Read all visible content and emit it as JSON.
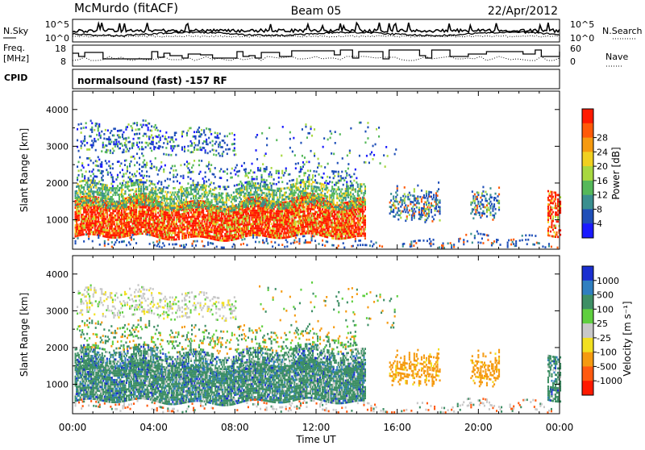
{
  "header": {
    "station": "McMurdo (fitACF)",
    "beam": "Beam 05",
    "date": "22/Apr/2012"
  },
  "summary_panel": {
    "nsky_label": "N.Sky",
    "nsky_ticks": [
      "10^5",
      "10^0"
    ],
    "nsearch_label": "N.Search",
    "nsearch_ticks": [
      "10^5",
      "10^0"
    ],
    "freq_label_line1": "Freq.",
    "freq_label_line2": "[MHz]",
    "freq_ticks": [
      "18",
      "8"
    ],
    "nave_label": "Nave",
    "nave_ticks": [
      "60",
      "0"
    ],
    "cpid_label": "CPID",
    "cpid_value": "normalsound (fast) -157 RF"
  },
  "chart_data": [
    {
      "type": "heatmap",
      "panel": "power",
      "ylabel": "Slant Range [km]",
      "yticks": [
        "1000",
        "2000",
        "3000",
        "4000"
      ],
      "ylim": [
        200,
        4500
      ],
      "xlim": [
        0,
        24
      ],
      "colorbar_label": "Power [dB]",
      "colorbar_ticks": [
        "4",
        "8",
        "12",
        "16",
        "20",
        "24",
        "28"
      ],
      "colorbar_colors": [
        "#1a1aff",
        "#1f4fb8",
        "#3a8f8f",
        "#55b85a",
        "#a8d840",
        "#f0d020",
        "#f59a10",
        "#ff5a08",
        "#ff1a00"
      ]
    },
    {
      "type": "heatmap",
      "panel": "velocity",
      "ylabel": "Slant Range [km]",
      "yticks": [
        "1000",
        "2000",
        "3000",
        "4000"
      ],
      "ylim": [
        200,
        4500
      ],
      "xlim": [
        0,
        24
      ],
      "colorbar_label": "Velocity [m s⁻¹]",
      "colorbar_ticks": [
        "1000",
        "500",
        "100",
        "25",
        "-25",
        "-100",
        "-500",
        "-1000"
      ],
      "colorbar_colors": [
        "#1a2fd0",
        "#2f7fc0",
        "#3e8f65",
        "#5fcf3f",
        "#c8c8c8",
        "#f2e020",
        "#f59a10",
        "#ff5a10",
        "#ff1a00"
      ]
    }
  ],
  "xaxis": {
    "label": "Time UT",
    "ticks": [
      "00:00",
      "04:00",
      "08:00",
      "12:00",
      "16:00",
      "20:00",
      "00:00"
    ]
  }
}
